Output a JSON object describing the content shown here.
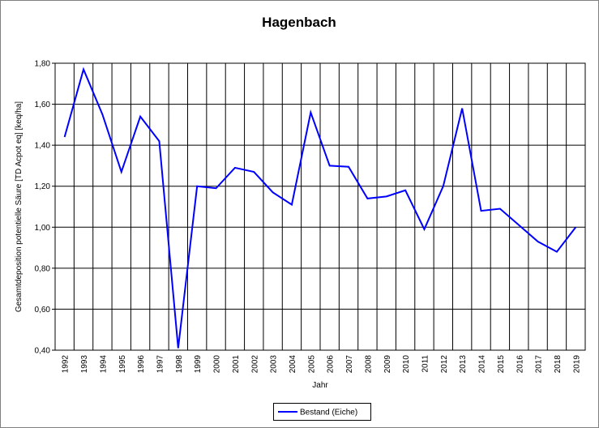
{
  "chart_data": {
    "type": "line",
    "title": "Hagenbach",
    "x_label": "Jahr",
    "y_label": "Gesamtdeposition potentielle Säure [TD Acpot eq] [keq/ha]",
    "categories": [
      "1992",
      "1993",
      "1994",
      "1995",
      "1996",
      "1997",
      "1998",
      "1999",
      "2000",
      "2001",
      "2002",
      "2003",
      "2004",
      "2005",
      "2006",
      "2007",
      "2008",
      "2009",
      "2010",
      "2011",
      "2012",
      "2013",
      "2014",
      "2015",
      "2016",
      "2017",
      "2018",
      "2019"
    ],
    "series": [
      {
        "name": "Bestand (Eiche)",
        "color": "#0000ff",
        "values": [
          1.44,
          1.77,
          1.55,
          1.27,
          1.54,
          1.42,
          0.41,
          1.2,
          1.19,
          1.29,
          1.27,
          1.17,
          1.11,
          1.56,
          1.3,
          1.295,
          1.14,
          1.15,
          1.18,
          0.99,
          1.2,
          1.58,
          1.08,
          1.09,
          1.01,
          0.93,
          0.88,
          1.0
        ]
      }
    ],
    "ylim": [
      0.4,
      1.8
    ],
    "yticks": [
      {
        "value": 0.4,
        "label": "0,40"
      },
      {
        "value": 0.6,
        "label": "0,60"
      },
      {
        "value": 0.8,
        "label": "0,80"
      },
      {
        "value": 1.0,
        "label": "1,00"
      },
      {
        "value": 1.2,
        "label": "1,20"
      },
      {
        "value": 1.4,
        "label": "1,40"
      },
      {
        "value": 1.6,
        "label": "1,60"
      },
      {
        "value": 1.8,
        "label": "1,80"
      }
    ],
    "grid": true,
    "legend": "bottom"
  }
}
